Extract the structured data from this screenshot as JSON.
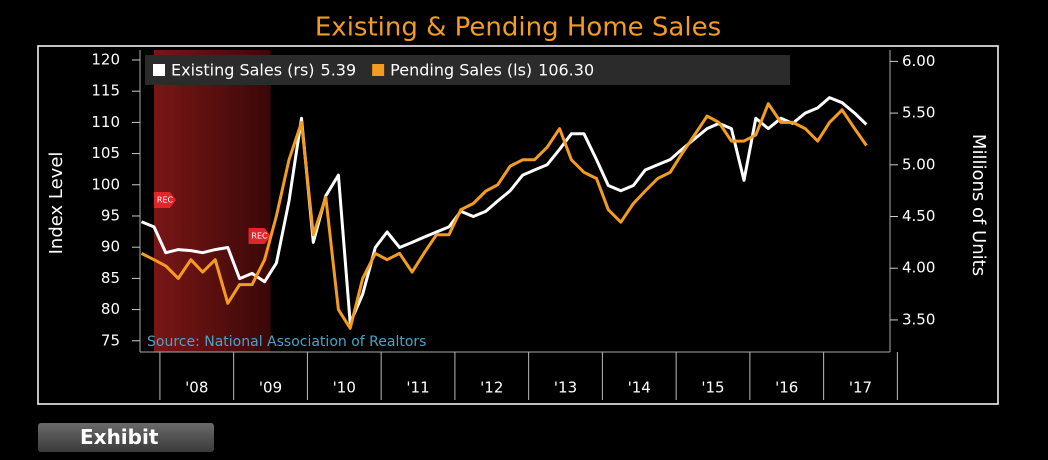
{
  "chart_data": {
    "type": "line",
    "title": "Existing & Pending Home Sales",
    "y_label": "Index Level",
    "y2_label": "Millions of Units",
    "source": "Source: National Association of Realtors",
    "recession": {
      "label": "REC",
      "range": [
        2007.92,
        2009.5
      ]
    },
    "x": [
      2007.75,
      2007.92,
      2008.08,
      2008.25,
      2008.42,
      2008.58,
      2008.75,
      2008.92,
      2009.08,
      2009.25,
      2009.42,
      2009.58,
      2009.75,
      2009.92,
      2010.08,
      2010.25,
      2010.42,
      2010.58,
      2010.75,
      2010.92,
      2011.08,
      2011.25,
      2011.42,
      2011.58,
      2011.75,
      2011.92,
      2012.08,
      2012.25,
      2012.42,
      2012.58,
      2012.75,
      2012.92,
      2013.08,
      2013.25,
      2013.42,
      2013.58,
      2013.75,
      2013.92,
      2014.08,
      2014.25,
      2014.42,
      2014.58,
      2014.75,
      2014.92,
      2015.08,
      2015.25,
      2015.42,
      2015.58,
      2015.75,
      2015.92,
      2016.08,
      2016.25,
      2016.42,
      2016.58,
      2016.75,
      2016.92,
      2017.08,
      2017.25,
      2017.42,
      2017.58
    ],
    "series": [
      {
        "name": "Existing Sales (rs)",
        "legend_value": "5.39",
        "color": "#ffffff",
        "axis": "y2",
        "values": [
          4.45,
          4.4,
          4.15,
          4.18,
          4.17,
          4.15,
          4.18,
          4.2,
          3.9,
          3.95,
          3.87,
          4.05,
          4.65,
          5.45,
          4.25,
          4.7,
          4.9,
          3.47,
          3.75,
          4.2,
          4.35,
          4.2,
          4.25,
          4.3,
          4.35,
          4.4,
          4.55,
          4.5,
          4.55,
          4.65,
          4.75,
          4.9,
          4.95,
          5.0,
          5.15,
          5.3,
          5.3,
          5.05,
          4.8,
          4.75,
          4.8,
          4.95,
          5.0,
          5.05,
          5.15,
          5.25,
          5.35,
          5.4,
          5.35,
          4.85,
          5.45,
          5.35,
          5.45,
          5.4,
          5.5,
          5.55,
          5.65,
          5.6,
          5.5,
          5.39
        ]
      },
      {
        "name": "Pending Sales (ls)",
        "legend_value": "106.30",
        "color": "#f39c1f",
        "values": [
          89,
          88,
          87,
          85,
          88,
          86,
          88,
          81,
          84,
          84,
          88,
          95,
          104,
          110,
          92,
          98,
          80,
          77,
          85,
          89,
          88,
          89,
          86,
          89,
          92,
          92,
          96,
          97,
          99,
          100,
          103,
          104,
          104,
          106,
          109,
          104,
          102,
          101,
          96,
          94,
          97,
          99,
          101,
          102,
          105,
          108,
          111,
          110,
          107,
          107,
          108,
          113,
          110,
          110,
          109,
          107,
          110,
          112,
          109,
          106.3
        ]
      }
    ],
    "xlim": [
      2007.73,
      2017.9
    ],
    "xticks": [
      {
        "value": 2008.5,
        "label": "'08"
      },
      {
        "value": 2009.5,
        "label": "'09"
      },
      {
        "value": 2010.5,
        "label": "'10"
      },
      {
        "value": 2011.5,
        "label": "'11"
      },
      {
        "value": 2012.5,
        "label": "'12"
      },
      {
        "value": 2013.5,
        "label": "'13"
      },
      {
        "value": 2014.5,
        "label": "'14"
      },
      {
        "value": 2015.5,
        "label": "'15"
      },
      {
        "value": 2016.5,
        "label": "'16"
      },
      {
        "value": 2017.5,
        "label": "'17"
      }
    ],
    "ylim": [
      73.2,
      121.6
    ],
    "yticks": [
      75,
      80,
      85,
      90,
      95,
      100,
      105,
      110,
      115,
      120
    ],
    "y2lim": [
      3.19,
      6.11
    ],
    "y2ticks": [
      {
        "value": 3.5,
        "label": "3.50"
      },
      {
        "value": 4.0,
        "label": "4.00"
      },
      {
        "value": 4.5,
        "label": "4.50"
      },
      {
        "value": 5.0,
        "label": "5.00"
      },
      {
        "value": 5.5,
        "label": "5.50"
      },
      {
        "value": 6.0,
        "label": "6.00"
      }
    ],
    "grid": false
  },
  "button": "Exhibit"
}
